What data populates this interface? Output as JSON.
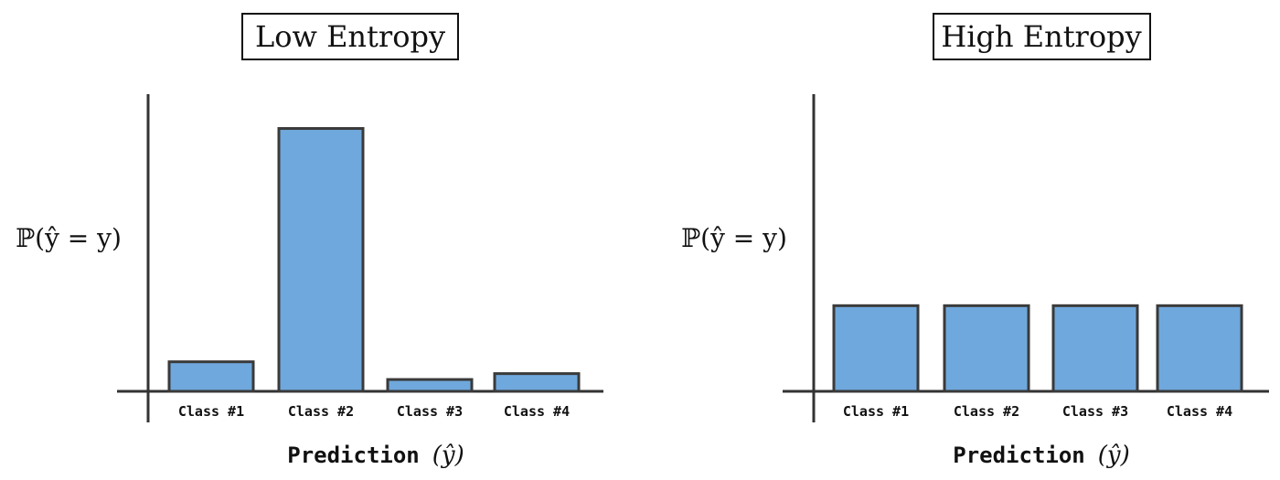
{
  "chart_data": [
    {
      "type": "bar",
      "title": "Low Entropy",
      "ylabel": "ℙ(ŷ = y)",
      "xlabel": "Prediction (ŷ)",
      "xlabel_text": "Prediction",
      "xlabel_math": "(ŷ)",
      "categories": [
        "Class #1",
        "Class #2",
        "Class #3",
        "Class #4"
      ],
      "values": [
        0.1,
        0.89,
        0.04,
        0.06
      ],
      "ylim": [
        0,
        1
      ],
      "grid": false,
      "bar_color": "#6fa8dc"
    },
    {
      "type": "bar",
      "title": "High Entropy",
      "ylabel": "ℙ(ŷ = y)",
      "xlabel": "Prediction (ŷ)",
      "xlabel_text": "Prediction",
      "xlabel_math": "(ŷ)",
      "categories": [
        "Class #1",
        "Class #2",
        "Class #3",
        "Class #4"
      ],
      "values": [
        0.29,
        0.29,
        0.29,
        0.29
      ],
      "ylim": [
        0,
        1
      ],
      "grid": false,
      "bar_color": "#6fa8dc"
    }
  ],
  "colors": {
    "bar_fill": "#6fa8dc",
    "bar_stroke": "#3a3a3a",
    "axis": "#333333",
    "text": "#111111"
  }
}
